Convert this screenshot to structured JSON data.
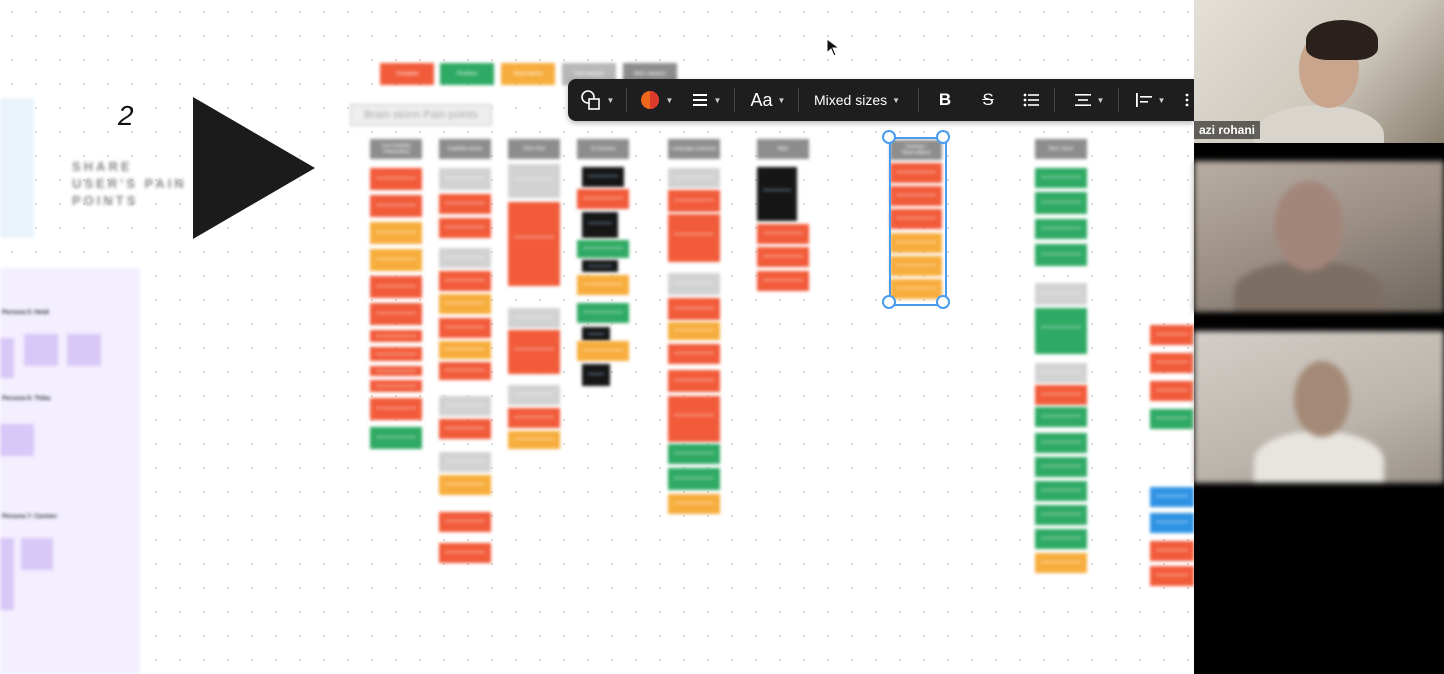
{
  "board": {
    "step_number": "2",
    "step_caption": "SHARE USER'S PAIN POINTS",
    "brainstorm_label": "Brain storm Pain points",
    "legend": [
      {
        "label": "Complaint",
        "color": "#f25b3a"
      },
      {
        "label": "Positives",
        "color": "#2faa64"
      },
      {
        "label": "Observations",
        "color": "#f7ad3d"
      },
      {
        "label": "Sub category",
        "color": "#b8b8b8"
      },
      {
        "label": "Main category",
        "color": "#8d8d8d"
      }
    ],
    "columns": [
      {
        "header": "Low Usability Onboarding"
      },
      {
        "header": "Usability issues"
      },
      {
        "header": "Ul/Ux flow"
      },
      {
        "header": "UI Screens"
      },
      {
        "header": "Language confusion"
      },
      {
        "header": "Main"
      },
      {
        "header": "Feelings / Observations"
      },
      {
        "header": "New Users"
      }
    ],
    "personas": [
      {
        "title": "Persona 5: Heidi"
      },
      {
        "title": "Persona 6: Thiba"
      },
      {
        "title": "Persona 7: Carmen"
      }
    ]
  },
  "toolbar": {
    "font_size": "Mixed sizes",
    "text_style": "Aa",
    "bold": "B",
    "strike": "S",
    "icons": [
      "shapes-icon",
      "color-fill-icon",
      "stroke-icon",
      "text-style-icon",
      "bold-icon",
      "strikethrough-icon",
      "bullet-list-icon",
      "align-icon",
      "text-align-icon"
    ],
    "fill_color": "#f0661d"
  },
  "video": {
    "participants": [
      {
        "name": "azi rohani"
      },
      {
        "name": ""
      },
      {
        "name": ""
      }
    ]
  }
}
